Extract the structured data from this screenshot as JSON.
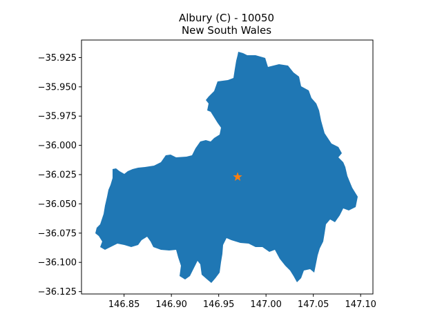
{
  "title_line1": "Albury (C) - 10050",
  "title_line2": "New South Wales",
  "map": {
    "xlim": [
      146.805,
      147.113
    ],
    "ylim": [
      -36.127,
      -35.91
    ],
    "region_color": "#1f77b4",
    "marker": {
      "lon": 146.97,
      "lat": -36.027,
      "shape": "star",
      "color": "#ff7f0e"
    }
  },
  "x_ticks": [
    {
      "value": 146.85,
      "label": "146.85"
    },
    {
      "value": 146.9,
      "label": "146.90"
    },
    {
      "value": 146.95,
      "label": "146.95"
    },
    {
      "value": 147.0,
      "label": "147.00"
    },
    {
      "value": 147.05,
      "label": "147.05"
    },
    {
      "value": 147.1,
      "label": "147.10"
    }
  ],
  "y_ticks": [
    {
      "value": -35.925,
      "label": "−35.925"
    },
    {
      "value": -35.95,
      "label": "−35.950"
    },
    {
      "value": -35.975,
      "label": "−35.975"
    },
    {
      "value": -36.0,
      "label": "−36.000"
    },
    {
      "value": -36.025,
      "label": "−36.025"
    },
    {
      "value": -36.05,
      "label": "−36.050"
    },
    {
      "value": -36.075,
      "label": "−36.075"
    },
    {
      "value": -36.1,
      "label": "−36.100"
    },
    {
      "value": -36.125,
      "label": "−36.125"
    }
  ]
}
